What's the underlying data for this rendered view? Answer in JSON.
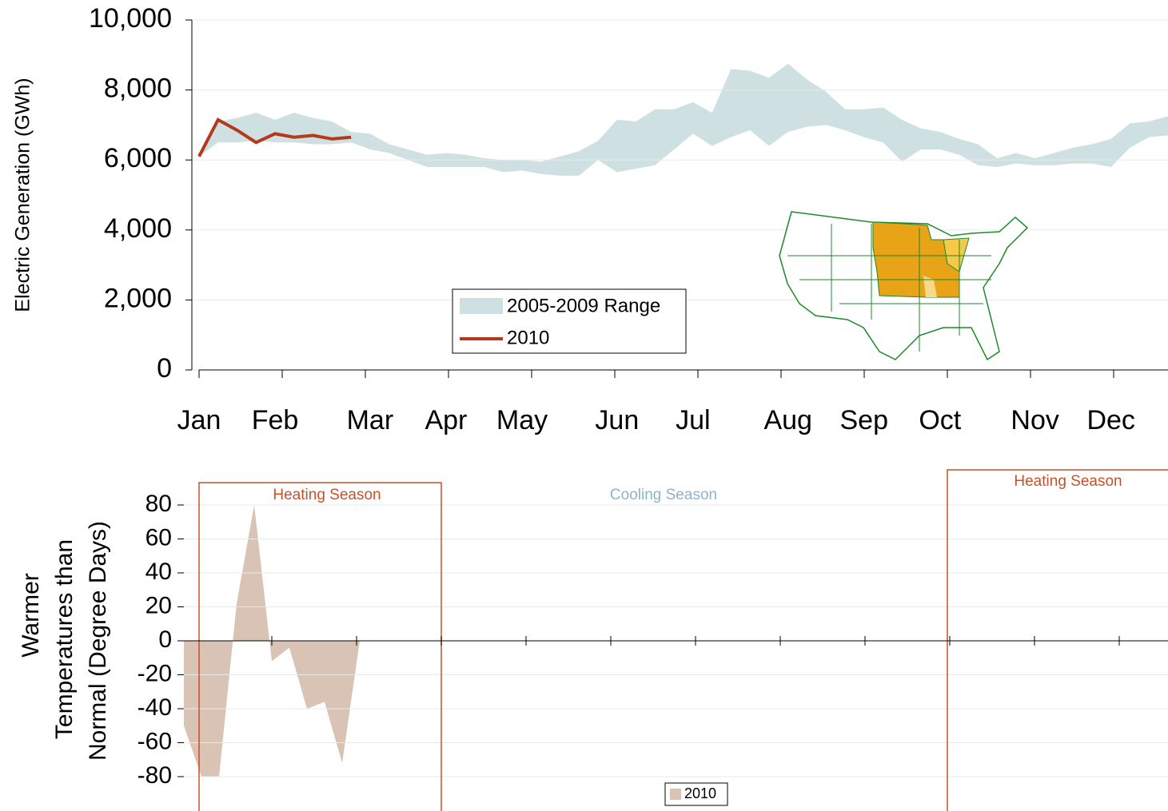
{
  "chart_data": [
    {
      "type": "range_line",
      "ylabel": "Electric Generation (GWh)",
      "categories": [
        "Jan",
        null,
        null,
        null,
        "Feb",
        null,
        null,
        null,
        null,
        "Mar",
        null,
        null,
        null,
        "Apr",
        null,
        null,
        null,
        "May",
        null,
        null,
        null,
        null,
        "Jun",
        null,
        null,
        null,
        "Jul",
        null,
        null,
        null,
        null,
        "Aug",
        null,
        null,
        null,
        "Sep",
        null,
        null,
        null,
        "Oct",
        null,
        null,
        null,
        null,
        "Nov",
        null,
        null,
        null,
        "Dec",
        null,
        null,
        null
      ],
      "range": {
        "name": "2005-2009 Range",
        "color": "#cfe0e3",
        "low": [
          6100,
          6500,
          6500,
          6550,
          6500,
          6500,
          6450,
          6450,
          6500,
          6300,
          6200,
          6000,
          5800,
          5800,
          5800,
          5800,
          5650,
          5700,
          5600,
          5550,
          5550,
          6000,
          5650,
          5750,
          5850,
          6300,
          6750,
          6400,
          6650,
          6850,
          6400,
          6800,
          6950,
          7000,
          6850,
          6650,
          6500,
          5950,
          6300,
          6300,
          6150,
          5850,
          5800,
          5900,
          5850,
          5850,
          5900,
          5900,
          5800,
          6350,
          6650,
          6700
        ],
        "high": [
          6200,
          7100,
          7200,
          7350,
          7150,
          7350,
          7200,
          7100,
          6800,
          6750,
          6450,
          6300,
          6150,
          6200,
          6150,
          6050,
          6000,
          6000,
          5950,
          6100,
          6250,
          6550,
          7150,
          7100,
          7450,
          7450,
          7650,
          7350,
          8600,
          8550,
          8350,
          8750,
          8300,
          7950,
          7450,
          7450,
          7500,
          7150,
          6900,
          6800,
          6600,
          6450,
          6050,
          6200,
          6050,
          6200,
          6350,
          6450,
          6600,
          7050,
          7100,
          7250
        ]
      },
      "series": [
        {
          "name": "2010",
          "color": "#b5391d",
          "values": [
            6100,
            7150,
            6850,
            6500,
            6750,
            6650,
            6700,
            6600,
            6650,
            null,
            null,
            null,
            null,
            null,
            null,
            null,
            null,
            null,
            null,
            null,
            null,
            null,
            null,
            null,
            null,
            null,
            null,
            null,
            null,
            null,
            null,
            null,
            null,
            null,
            null,
            null,
            null,
            null,
            null,
            null,
            null,
            null,
            null,
            null,
            null,
            null,
            null,
            null,
            null,
            null,
            null,
            null
          ]
        }
      ],
      "ylim": [
        0,
        10000
      ],
      "yticks": [
        0,
        {
          "value": 2000,
          "label": "2,000"
        },
        {
          "value": 4000,
          "label": "4,000"
        },
        {
          "value": 6000,
          "label": "6,000"
        },
        {
          "value": 8000,
          "label": "8,000"
        },
        {
          "value": 10000,
          "label": "10,000"
        }
      ],
      "grid": true
    },
    {
      "type": "area",
      "ylabel": [
        "Warmer",
        "Temperatures than",
        "Normal (Degree Days)"
      ],
      "series": [
        {
          "name": "2010",
          "color": "#d9c3b5",
          "values": [
            -50,
            -80,
            -80,
            22,
            80,
            -12,
            -4,
            -40,
            -36,
            -72,
            0
          ]
        }
      ],
      "ylim": [
        -80,
        80
      ],
      "yticks": [
        -80,
        -60,
        -40,
        -20,
        0,
        20,
        40,
        60,
        80
      ],
      "grid": true,
      "annotations": [
        "Heating Season",
        "Cooling Season",
        "Heating Season"
      ]
    }
  ]
}
